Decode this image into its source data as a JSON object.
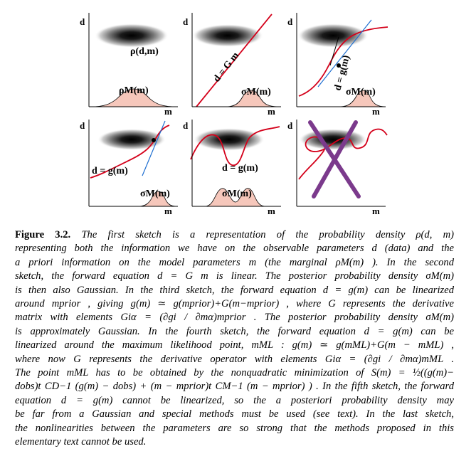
{
  "figure": {
    "axis_labels": {
      "d": "d",
      "m": "m"
    },
    "panels": [
      {
        "curve_label": "",
        "density_label": "ρ(d,m)",
        "marginal_label": "ρM(m)"
      },
      {
        "curve_label": "d = G m",
        "density_label": "",
        "marginal_label": "σM(m)"
      },
      {
        "curve_label": "d = g(m)",
        "density_label": "",
        "marginal_label": "σM(m)"
      },
      {
        "curve_label": "d = g(m)",
        "density_label": "",
        "marginal_label": "σM(m)"
      },
      {
        "curve_label": "d = g(m)",
        "density_label": "",
        "marginal_label": "σM(m)"
      },
      {
        "curve_label": "",
        "density_label": "",
        "marginal_label": ""
      }
    ]
  },
  "caption": {
    "lead": "Figure 3.2.",
    "lines": [
      "The first sketch is a representation of the probability density ρ(d, m)",
      "representing both the information we have on the observable parameters d (data) and the",
      "a priori information on the model parameters m (the marginal ρM(m) ). In the second",
      "sketch, the forward equation d = G m is linear. The posterior probability density σM(m)",
      "is then also Gaussian. In the third sketch, the forward equation d = g(m) can be linearized",
      "around mprior , giving g(m) ≃ g(mprior)+G(m−mprior) , where G represents the derivative",
      "matrix with elements Giα = (∂gi / ∂mα)mprior . The posterior probability density σM(m)",
      "is approximately Gaussian. In the fourth sketch, the forward equation d = g(m) can be",
      "linearized around the maximum likelihood point, mML : g(m) ≃ g(mML)+G(m − mML) ,",
      "where now G represents the derivative operator with elements Giα = (∂gi / ∂mα)mML .",
      "The point mML has to be obtained by the nonquadratic minimization of S(m) = ½((g(m)−",
      "dobs)t CD−1 (g(m) − dobs) + (m − mprior)t CM−1 (m − mprior) ) . In the fifth sketch, the forward",
      "equation d = g(m) cannot be linearized, so the a posteriori probability density may",
      "be far from a Gaussian and special methods must be used (see text). In the last sketch,",
      "the nonlinearities between the parameters are so strong that the methods proposed in this",
      "elementary text cannot be used."
    ]
  },
  "colors": {
    "curve": "#d4001a",
    "linearization": "#1f6fd1",
    "marginal_fill": "#f6c7bb",
    "cross": "#7b3a8c"
  }
}
